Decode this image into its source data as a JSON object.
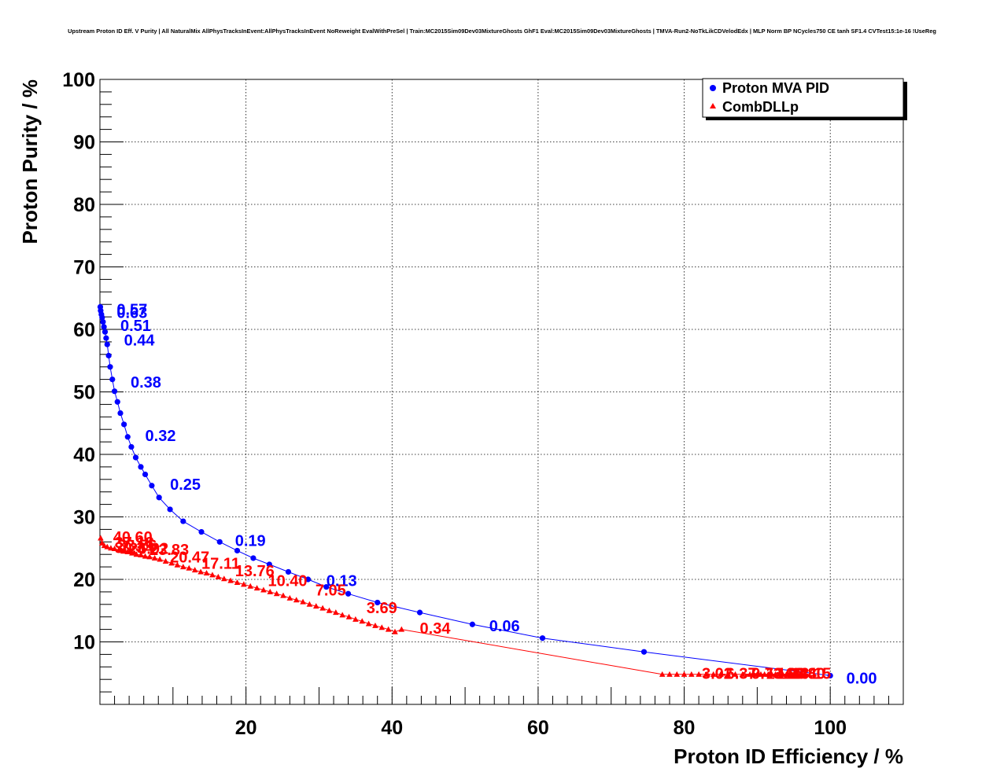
{
  "chart_data": {
    "type": "scatter",
    "title": "Upstream Proton ID Eff. V Purity | All NaturalMix AllPhysTracksInEvent:AllPhysTracksInEvent NoReweight EvalWithPreSel | Train:MC2015Sim09Dev03MixtureGhosts GhF1 Eval:MC2015Sim09Dev03MixtureGhosts | TMVA-Run2-NoTkLikCDVelodEdx | MLP Norm BP NCycles750 CE tanh SF1.4 CVTest15:1e-16 !UseReg",
    "xlabel": "Proton ID Efficiency / %",
    "ylabel": "Proton Purity / %",
    "xlim": [
      0,
      110
    ],
    "ylim": [
      0,
      100
    ],
    "xticks": [
      20,
      40,
      60,
      80,
      100
    ],
    "yticks": [
      10,
      20,
      30,
      40,
      50,
      60,
      70,
      80,
      90,
      100
    ],
    "grid": true,
    "legend_position": "top-right",
    "series": [
      {
        "name": "Proton MVA PID",
        "color": "#0000ff",
        "marker": "circle",
        "x": [
          100.0,
          74.5,
          60.6,
          51.0,
          43.8,
          38.0,
          34.0,
          31.0,
          28.5,
          25.8,
          23.2,
          21.0,
          18.8,
          16.4,
          13.9,
          11.4,
          9.6,
          8.1,
          7.1,
          6.2,
          5.6,
          4.9,
          4.3,
          3.8,
          3.3,
          2.8,
          2.4,
          2.0,
          1.7,
          1.4,
          1.2,
          1.0,
          0.85,
          0.7,
          0.55,
          0.42,
          0.3,
          0.2,
          0.1,
          0.05
        ],
        "y": [
          4.6,
          8.4,
          10.6,
          12.8,
          14.7,
          16.3,
          17.7,
          18.8,
          20.0,
          21.2,
          22.4,
          23.4,
          24.6,
          26.0,
          27.6,
          29.3,
          31.2,
          33.1,
          35.0,
          36.8,
          38.0,
          39.5,
          41.2,
          42.8,
          44.8,
          46.6,
          48.4,
          50.1,
          52.0,
          54.0,
          55.8,
          57.6,
          58.6,
          59.6,
          60.4,
          61.2,
          61.9,
          62.4,
          63.0,
          63.6
        ]
      },
      {
        "name": "CombDLLp",
        "color": "#ff0000",
        "marker": "triangle",
        "x": [
          0.1,
          0.3,
          0.6,
          1.0,
          1.5,
          2.0,
          2.6,
          3.2,
          3.8,
          4.4,
          5.0,
          5.6,
          6.2,
          6.8,
          7.5,
          8.2,
          9.0,
          9.8,
          10.6,
          11.4,
          12.2,
          13.0,
          13.8,
          14.6,
          15.4,
          16.2,
          17.0,
          17.9,
          18.8,
          19.7,
          20.6,
          21.5,
          22.4,
          23.3,
          24.2,
          25.1,
          26.0,
          26.9,
          27.8,
          28.7,
          29.6,
          30.5,
          31.4,
          32.3,
          33.2,
          34.1,
          35.0,
          35.9,
          36.8,
          37.7,
          38.6,
          39.5,
          40.4,
          41.3,
          77.0,
          78.0,
          79.0,
          80.0,
          81.0,
          82.0,
          83.0,
          84.0,
          85.0,
          86.0,
          87.0,
          88.0,
          89.0,
          89.5,
          90.0,
          90.5,
          91.0,
          91.5,
          92.0,
          92.5,
          93.0,
          93.5,
          94.0,
          94.5,
          95.0,
          95.5,
          96.0,
          96.5
        ],
        "y": [
          26.6,
          25.8,
          25.4,
          25.2,
          25.0,
          24.9,
          24.7,
          24.5,
          24.4,
          24.2,
          24.0,
          23.9,
          23.7,
          23.6,
          23.4,
          23.2,
          22.9,
          22.6,
          22.3,
          22.0,
          21.8,
          21.5,
          21.2,
          21.0,
          20.7,
          20.4,
          20.1,
          19.8,
          19.5,
          19.2,
          18.9,
          18.6,
          18.3,
          18.0,
          17.7,
          17.4,
          17.0,
          16.7,
          16.4,
          16.0,
          15.7,
          15.4,
          15.0,
          14.7,
          14.3,
          14.0,
          13.6,
          13.3,
          12.9,
          12.6,
          12.3,
          12.0,
          11.6,
          12.0,
          4.8,
          4.8,
          4.8,
          4.8,
          4.8,
          4.8,
          4.8,
          4.8,
          4.8,
          4.8,
          4.8,
          4.8,
          4.8,
          4.8,
          4.8,
          4.8,
          4.8,
          4.8,
          4.8,
          4.8,
          4.8,
          4.8,
          4.8,
          4.8,
          4.8,
          4.8,
          4.8,
          4.8
        ]
      }
    ],
    "annotations": [
      {
        "text": "0.57",
        "x": 2.3,
        "y": 63.2,
        "color": "#0000ff"
      },
      {
        "text": "0.63",
        "x": 2.3,
        "y": 62.7,
        "color": "#0000ff"
      },
      {
        "text": "0.51",
        "x": 2.8,
        "y": 60.6,
        "color": "#0000ff"
      },
      {
        "text": "0.44",
        "x": 3.3,
        "y": 58.3,
        "color": "#0000ff"
      },
      {
        "text": "0.38",
        "x": 4.2,
        "y": 51.6,
        "color": "#0000ff"
      },
      {
        "text": "0.32",
        "x": 6.2,
        "y": 43.0,
        "color": "#0000ff"
      },
      {
        "text": "0.25",
        "x": 9.6,
        "y": 35.2,
        "color": "#0000ff"
      },
      {
        "text": "0.19",
        "x": 18.5,
        "y": 26.2,
        "color": "#0000ff"
      },
      {
        "text": "0.13",
        "x": 31.0,
        "y": 19.8,
        "color": "#0000ff"
      },
      {
        "text": "0.06",
        "x": 53.3,
        "y": 12.6,
        "color": "#0000ff"
      },
      {
        "text": "0.00",
        "x": 102.2,
        "y": 4.2,
        "color": "#0000ff"
      },
      {
        "text": "40.60",
        "x": 1.8,
        "y": 26.8,
        "color": "#ff0000"
      },
      {
        "text": "37.18",
        "x": 2.0,
        "y": 25.9,
        "color": "#ff0000"
      },
      {
        "text": "33.76",
        "x": 2.4,
        "y": 25.5,
        "color": "#ff0000"
      },
      {
        "text": "30.34",
        "x": 2.0,
        "y": 25.1,
        "color": "#ff0000"
      },
      {
        "text": "26.92",
        "x": 4.0,
        "y": 25.0,
        "color": "#ff0000"
      },
      {
        "text": "23.83",
        "x": 6.8,
        "y": 24.8,
        "color": "#ff0000"
      },
      {
        "text": "20.47",
        "x": 9.6,
        "y": 23.6,
        "color": "#ff0000"
      },
      {
        "text": "17.11",
        "x": 13.9,
        "y": 22.6,
        "color": "#ff0000"
      },
      {
        "text": "13.76",
        "x": 18.5,
        "y": 21.4,
        "color": "#ff0000"
      },
      {
        "text": "10.40",
        "x": 23.0,
        "y": 19.8,
        "color": "#ff0000"
      },
      {
        "text": "7.05",
        "x": 29.5,
        "y": 18.3,
        "color": "#ff0000"
      },
      {
        "text": "3.69",
        "x": 36.5,
        "y": 15.5,
        "color": "#ff0000"
      },
      {
        "text": "0.34",
        "x": 43.8,
        "y": 12.2,
        "color": "#ff0000"
      },
      {
        "text": "-3.02",
        "x": 81.7,
        "y": 5.0,
        "color": "#ff0000"
      },
      {
        "text": "-6.37",
        "x": 85.0,
        "y": 5.0,
        "color": "#ff0000"
      },
      {
        "text": "-9.73",
        "x": 88.5,
        "y": 5.0,
        "color": "#ff0000"
      },
      {
        "text": "-13.08",
        "x": 90.5,
        "y": 5.0,
        "color": "#ff0000"
      },
      {
        "text": "-16.44",
        "x": 92.0,
        "y": 5.0,
        "color": "#ff0000"
      },
      {
        "text": "-19.80",
        "x": 93.2,
        "y": 5.0,
        "color": "#ff0000"
      },
      {
        "text": "-23.15",
        "x": 94.0,
        "y": 5.0,
        "color": "#ff0000"
      }
    ]
  }
}
